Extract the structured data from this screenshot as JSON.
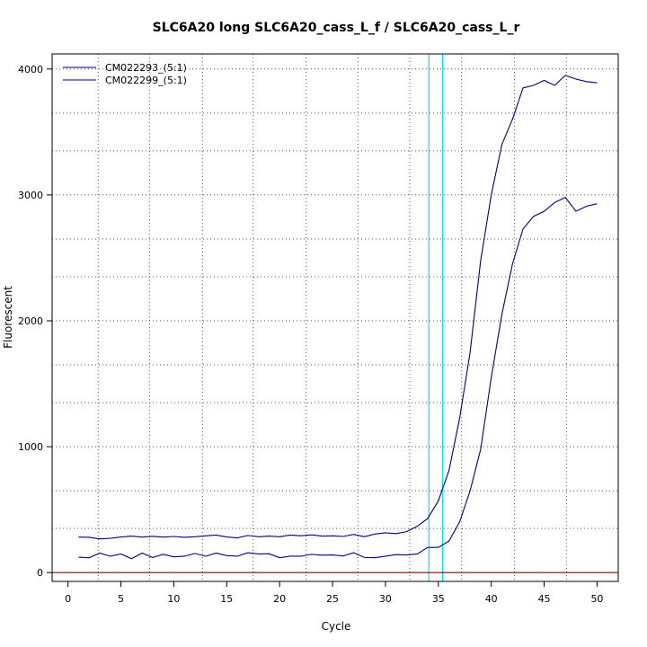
{
  "chart_data": {
    "type": "line",
    "title": "SLC6A20 long SLC6A20_cass_L_f / SLC6A20_cass_L_r",
    "xlabel": "Cycle",
    "ylabel": "Fluorescent",
    "xlim": [
      -1.5,
      52
    ],
    "ylim": [
      -70,
      4120
    ],
    "x_ticks": [
      0,
      5,
      10,
      15,
      20,
      25,
      30,
      35,
      40,
      45,
      50
    ],
    "y_ticks": [
      0,
      1000,
      2000,
      3000,
      4000
    ],
    "x_minor_grid": [
      2.85,
      7.7,
      12.7,
      17.5,
      22.5,
      27.4,
      32.3,
      37.2,
      42.2,
      47.1
    ],
    "y_minor_grid": [
      350,
      650,
      1000,
      1350,
      1650,
      2000,
      2350,
      2650,
      3000,
      3350,
      3650,
      4000
    ],
    "grid": true,
    "legend_position": "top-left",
    "threshold": 0,
    "threshold_color": "#8b0000",
    "series_color": "#000080",
    "cycle_marker_color": "#00e5ee",
    "cycle_markers": [
      34.1,
      35.4
    ],
    "x": [
      1,
      2,
      3,
      4,
      5,
      6,
      7,
      8,
      9,
      10,
      11,
      12,
      13,
      14,
      15,
      16,
      17,
      18,
      19,
      20,
      21,
      22,
      23,
      24,
      25,
      26,
      27,
      28,
      29,
      30,
      31,
      32,
      33,
      34,
      35,
      36,
      37,
      38,
      39,
      40,
      41,
      42,
      43,
      44,
      45,
      46,
      47,
      48,
      49,
      50
    ],
    "series": [
      {
        "name": "CM022293_(5:1)",
        "values": [
          282,
          280,
          268,
          272,
          283,
          290,
          282,
          288,
          282,
          287,
          280,
          285,
          292,
          298,
          283,
          276,
          295,
          285,
          290,
          285,
          298,
          293,
          300,
          290,
          292,
          287,
          303,
          285,
          306,
          316,
          310,
          325,
          368,
          430,
          570,
          810,
          1220,
          1750,
          2480,
          3000,
          3400,
          3600,
          3850,
          3870,
          3910,
          3870,
          3950,
          3920,
          3900,
          3890
        ]
      },
      {
        "name": "CM022299_(5:1)",
        "values": [
          122,
          118,
          155,
          130,
          148,
          110,
          155,
          120,
          145,
          125,
          130,
          152,
          130,
          155,
          135,
          130,
          158,
          148,
          150,
          118,
          130,
          130,
          145,
          138,
          140,
          132,
          158,
          120,
          118,
          130,
          143,
          140,
          148,
          200,
          200,
          250,
          400,
          650,
          980,
          1550,
          2050,
          2450,
          2730,
          2830,
          2870,
          2940,
          2980,
          2870,
          2910,
          2930
        ]
      }
    ]
  }
}
